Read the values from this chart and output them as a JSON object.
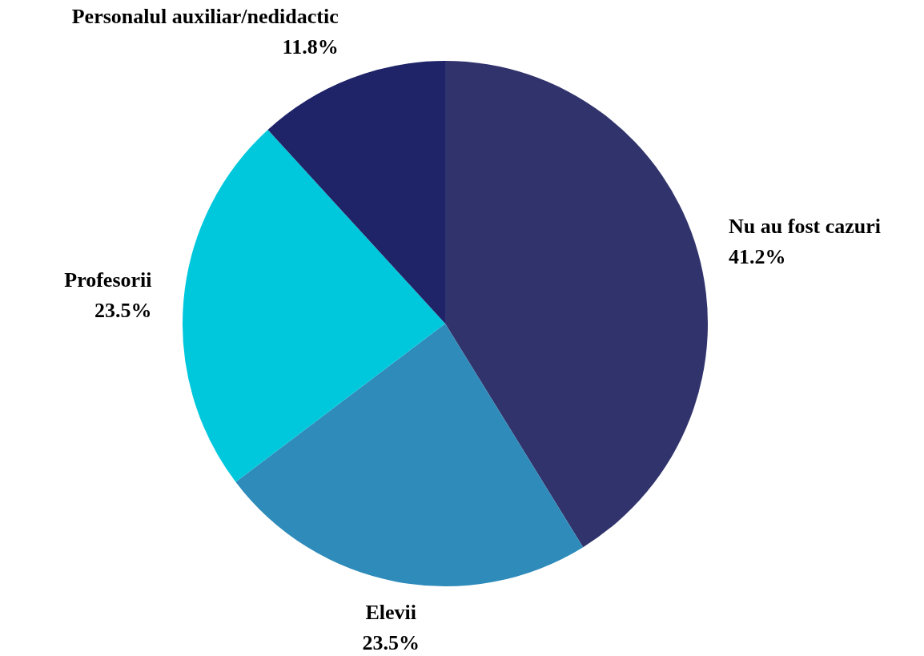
{
  "chart_data": {
    "type": "pie",
    "categories": [
      "Nu au fost cazuri",
      "Elevii",
      "Profesorii",
      "Personalul auxiliar/nedidactic"
    ],
    "values": [
      41.2,
      23.5,
      23.5,
      11.8
    ],
    "colors": [
      "#31346c",
      "#2e8bba",
      "#00c8dc",
      "#1f2468"
    ],
    "value_labels": [
      "41.2%",
      "23.5%",
      "23.5%",
      "11.8%"
    ],
    "legend": false
  }
}
